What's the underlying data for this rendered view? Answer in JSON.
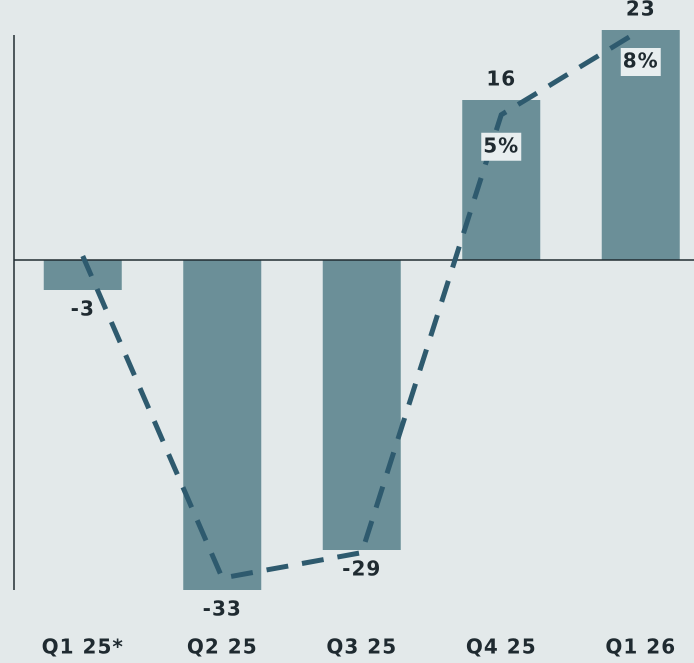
{
  "chart_data": {
    "type": "bar",
    "categories": [
      "Q1 25*",
      "Q2 25",
      "Q3 25",
      "Q4 25",
      "Q1 26"
    ],
    "series": [
      {
        "type": "bar",
        "color": "#6b8f98",
        "values": [
          -3,
          -33,
          -29,
          16,
          23
        ]
      },
      {
        "type": "line",
        "axis": "y2",
        "color": "#2e5a6e",
        "dashed": true,
        "values": [
          0,
          -11.4,
          -10.5,
          5,
          8
        ],
        "value_labels": [
          null,
          null,
          null,
          "5%",
          "8%"
        ]
      }
    ],
    "ylim": [
      -33.5,
      23
    ],
    "y2lim": [
      -12,
      8
    ]
  }
}
